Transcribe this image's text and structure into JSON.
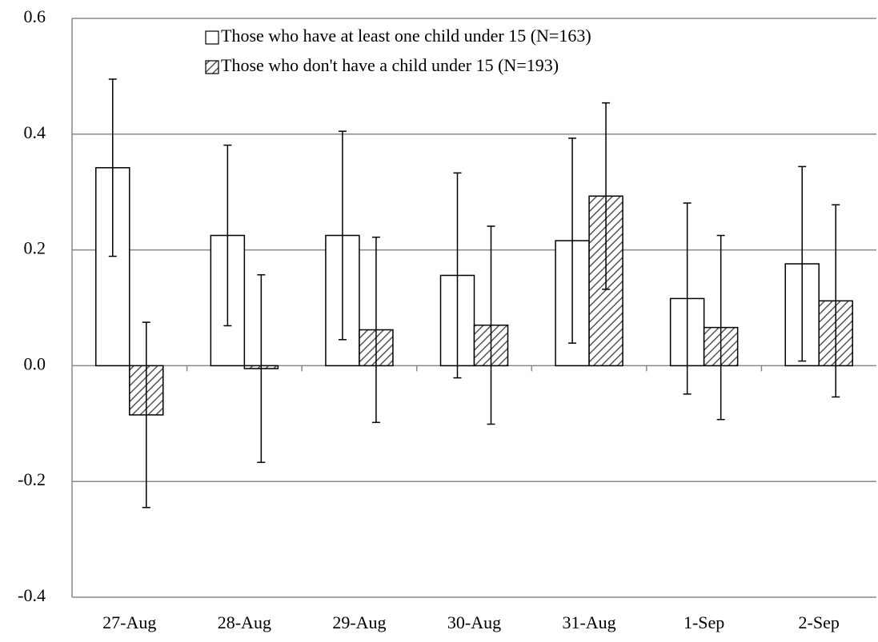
{
  "chart_data": {
    "type": "bar",
    "categories": [
      "27-Aug",
      "28-Aug",
      "29-Aug",
      "30-Aug",
      "31-Aug",
      "1-Sep",
      "2-Sep"
    ],
    "series": [
      {
        "name": "Those who have at least one child under 15 (N=163)",
        "color": "#ffffff",
        "pattern": "none",
        "values": [
          0.342,
          0.225,
          0.225,
          0.156,
          0.216,
          0.116,
          0.176
        ],
        "errors": [
          0.153,
          0.156,
          0.18,
          0.177,
          0.177,
          0.165,
          0.168
        ]
      },
      {
        "name": "Those who don't have a child under 15 (N=193)",
        "color": "#ffffff",
        "pattern": "hatch",
        "values": [
          -0.085,
          -0.005,
          0.062,
          0.07,
          0.293,
          0.066,
          0.112
        ],
        "errors": [
          0.16,
          0.162,
          0.16,
          0.171,
          0.161,
          0.159,
          0.166
        ]
      }
    ],
    "ylim": [
      -0.4,
      0.6
    ],
    "yticks": [
      -0.4,
      -0.2,
      {
        "value": 0,
        "label": "0.0"
      },
      0.2,
      0.4,
      0.6
    ],
    "grid": true,
    "legend": "top"
  }
}
